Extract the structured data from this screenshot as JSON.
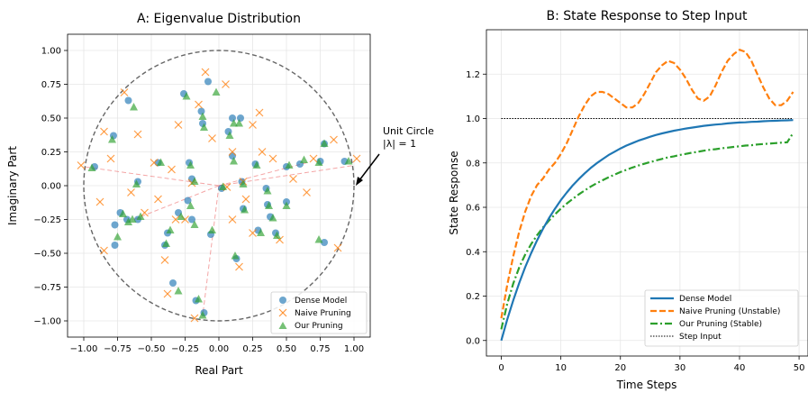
{
  "chart_data": [
    {
      "type": "scatter",
      "title": "A: Eigenvalue Distribution",
      "xlabel": "Real Part",
      "ylabel": "Imaginary Part",
      "xlim": [
        -1.12,
        1.12
      ],
      "ylim": [
        -1.12,
        1.12
      ],
      "xticks": [
        "−1.00",
        "−0.75",
        "−0.50",
        "−0.25",
        "0.00",
        "0.25",
        "0.50",
        "0.75",
        "1.00"
      ],
      "yticks": [
        "−1.00",
        "−0.75",
        "−0.50",
        "−0.25",
        "0.00",
        "0.25",
        "0.50",
        "0.75",
        "1.00"
      ],
      "grid": true,
      "legend_position": "lower-right",
      "annotation": {
        "line1": "Unit Circle",
        "line2": "|λ| = 1",
        "points_to": [
          1.0,
          0.0
        ]
      },
      "series": [
        {
          "name": "Dense Model",
          "marker": "circle",
          "color": "#1f77b4",
          "points": [
            [
              -0.92,
              0.14
            ],
            [
              -0.67,
              0.63
            ],
            [
              -0.78,
              0.37
            ],
            [
              -0.45,
              0.17
            ],
            [
              -0.6,
              0.03
            ],
            [
              -0.38,
              -0.35
            ],
            [
              -0.4,
              -0.44
            ],
            [
              -0.73,
              -0.2
            ],
            [
              -0.77,
              -0.29
            ],
            [
              -0.68,
              -0.25
            ],
            [
              -0.6,
              -0.25
            ],
            [
              -0.77,
              -0.44
            ],
            [
              -0.26,
              0.68
            ],
            [
              -0.08,
              0.77
            ],
            [
              -0.13,
              0.55
            ],
            [
              -0.12,
              0.46
            ],
            [
              -0.22,
              0.17
            ],
            [
              -0.2,
              0.05
            ],
            [
              -0.23,
              -0.11
            ],
            [
              -0.3,
              -0.2
            ],
            [
              -0.2,
              -0.25
            ],
            [
              -0.06,
              -0.36
            ],
            [
              0.07,
              0.4
            ],
            [
              0.1,
              0.5
            ],
            [
              0.16,
              0.5
            ],
            [
              0.1,
              0.22
            ],
            [
              0.27,
              0.16
            ],
            [
              0.17,
              0.03
            ],
            [
              0.35,
              -0.02
            ],
            [
              0.36,
              -0.14
            ],
            [
              0.5,
              -0.12
            ],
            [
              0.5,
              0.14
            ],
            [
              0.6,
              0.16
            ],
            [
              0.75,
              0.18
            ],
            [
              0.78,
              0.31
            ],
            [
              0.93,
              0.18
            ],
            [
              0.18,
              -0.17
            ],
            [
              0.38,
              -0.23
            ],
            [
              0.29,
              -0.33
            ],
            [
              0.42,
              -0.35
            ],
            [
              0.13,
              -0.54
            ],
            [
              0.78,
              -0.42
            ],
            [
              0.02,
              -0.02
            ],
            [
              -0.17,
              -0.85
            ],
            [
              -0.34,
              -0.72
            ],
            [
              -0.11,
              -0.94
            ]
          ]
        },
        {
          "name": "Naive Pruning",
          "marker": "x",
          "color": "#ff7f0e",
          "points": [
            [
              -1.02,
              0.15
            ],
            [
              -0.85,
              0.4
            ],
            [
              -0.88,
              -0.12
            ],
            [
              -0.7,
              0.69
            ],
            [
              -0.6,
              0.38
            ],
            [
              -0.65,
              -0.05
            ],
            [
              -0.45,
              -0.1
            ],
            [
              -0.35,
              0.12
            ],
            [
              -0.32,
              -0.25
            ],
            [
              -0.4,
              -0.55
            ],
            [
              -0.38,
              -0.8
            ],
            [
              -0.3,
              0.45
            ],
            [
              -0.15,
              0.6
            ],
            [
              -0.1,
              0.84
            ],
            [
              0.05,
              0.75
            ],
            [
              -0.05,
              0.35
            ],
            [
              -0.2,
              0.02
            ],
            [
              -0.25,
              -0.25
            ],
            [
              0.06,
              -0.01
            ],
            [
              0.1,
              -0.25
            ],
            [
              0.25,
              0.45
            ],
            [
              0.3,
              0.54
            ],
            [
              0.2,
              -0.1
            ],
            [
              0.4,
              0.2
            ],
            [
              0.45,
              -0.4
            ],
            [
              0.15,
              -0.6
            ],
            [
              0.1,
              0.25
            ],
            [
              0.55,
              0.05
            ],
            [
              0.65,
              -0.05
            ],
            [
              0.7,
              0.2
            ],
            [
              0.85,
              0.34
            ],
            [
              1.02,
              0.2
            ],
            [
              0.88,
              -0.46
            ],
            [
              -0.85,
              -0.48
            ],
            [
              0.25,
              -0.35
            ],
            [
              0.32,
              0.25
            ],
            [
              -0.8,
              0.2
            ],
            [
              -0.18,
              -0.98
            ],
            [
              0.18,
              0.03
            ],
            [
              -0.55,
              -0.2
            ],
            [
              -0.48,
              0.17
            ]
          ]
        },
        {
          "name": "Our Pruning",
          "marker": "triangle",
          "color": "#2ca02c",
          "points": [
            [
              -0.94,
              0.13
            ],
            [
              -0.63,
              0.58
            ],
            [
              -0.79,
              0.34
            ],
            [
              -0.43,
              0.17
            ],
            [
              -0.61,
              0.01
            ],
            [
              -0.36,
              -0.33
            ],
            [
              -0.39,
              -0.43
            ],
            [
              -0.71,
              -0.21
            ],
            [
              -0.67,
              -0.27
            ],
            [
              -0.64,
              -0.25
            ],
            [
              -0.58,
              -0.23
            ],
            [
              -0.75,
              -0.38
            ],
            [
              -0.24,
              0.66
            ],
            [
              -0.02,
              0.69
            ],
            [
              -0.12,
              0.51
            ],
            [
              -0.11,
              0.43
            ],
            [
              -0.21,
              0.15
            ],
            [
              -0.18,
              0.03
            ],
            [
              -0.21,
              -0.15
            ],
            [
              -0.28,
              -0.23
            ],
            [
              -0.18,
              -0.29
            ],
            [
              -0.05,
              -0.33
            ],
            [
              0.08,
              0.37
            ],
            [
              0.11,
              0.46
            ],
            [
              0.15,
              0.46
            ],
            [
              0.11,
              0.18
            ],
            [
              0.28,
              0.15
            ],
            [
              0.18,
              0.01
            ],
            [
              0.36,
              -0.04
            ],
            [
              0.37,
              -0.15
            ],
            [
              0.5,
              -0.15
            ],
            [
              0.52,
              0.15
            ],
            [
              0.63,
              0.19
            ],
            [
              0.78,
              0.31
            ],
            [
              0.74,
              0.17
            ],
            [
              0.96,
              0.18
            ],
            [
              0.19,
              -0.18
            ],
            [
              0.4,
              -0.24
            ],
            [
              0.31,
              -0.35
            ],
            [
              0.43,
              -0.37
            ],
            [
              0.12,
              -0.52
            ],
            [
              0.74,
              -0.4
            ],
            [
              0.03,
              -0.01
            ],
            [
              -0.15,
              -0.84
            ],
            [
              -0.3,
              -0.78
            ],
            [
              -0.12,
              -0.96
            ]
          ]
        }
      ]
    },
    {
      "type": "line",
      "title": "B: State Response to Step Input",
      "xlabel": "Time Steps",
      "ylabel": "State Response",
      "xlim": [
        -2.5,
        51.5
      ],
      "ylim": [
        -0.07,
        1.4
      ],
      "xticks": [
        "0",
        "10",
        "20",
        "30",
        "40",
        "50"
      ],
      "yticks": [
        "0.0",
        "0.2",
        "0.4",
        "0.6",
        "0.8",
        "1.0",
        "1.2"
      ],
      "grid": true,
      "legend_position": "lower-right",
      "series": [
        {
          "name": "Dense Model",
          "style": "solid",
          "color": "#1f77b4",
          "x": [
            0,
            1,
            2,
            3,
            4,
            5,
            6,
            7,
            8,
            9,
            10,
            11,
            12,
            13,
            14,
            15,
            16,
            17,
            18,
            19,
            20,
            21,
            22,
            23,
            24,
            25,
            26,
            27,
            28,
            29,
            30,
            31,
            32,
            33,
            34,
            35,
            36,
            37,
            38,
            39,
            40,
            41,
            42,
            43,
            44,
            45,
            46,
            47,
            48,
            49
          ],
          "y": [
            0.0,
            0.095,
            0.181,
            0.259,
            0.33,
            0.393,
            0.451,
            0.503,
            0.551,
            0.593,
            0.632,
            0.667,
            0.699,
            0.727,
            0.753,
            0.777,
            0.798,
            0.817,
            0.835,
            0.85,
            0.865,
            0.878,
            0.889,
            0.9,
            0.909,
            0.918,
            0.926,
            0.933,
            0.939,
            0.945,
            0.95,
            0.955,
            0.959,
            0.963,
            0.967,
            0.97,
            0.973,
            0.975,
            0.978,
            0.98,
            0.982,
            0.983,
            0.985,
            0.986,
            0.988,
            0.989,
            0.99,
            0.991,
            0.992,
            0.993
          ]
        },
        {
          "name": "Naive Pruning (Unstable)",
          "style": "dashed",
          "color": "#ff7f0e",
          "x": [
            0,
            1,
            2,
            3,
            4,
            5,
            6,
            7,
            8,
            9,
            10,
            11,
            12,
            13,
            14,
            15,
            16,
            17,
            18,
            19,
            20,
            21,
            22,
            23,
            24,
            25,
            26,
            27,
            28,
            29,
            30,
            31,
            32,
            33,
            34,
            35,
            36,
            37,
            38,
            39,
            40,
            41,
            42,
            43,
            44,
            45,
            46,
            47,
            48,
            49
          ],
          "y": [
            0.1,
            0.25,
            0.38,
            0.49,
            0.58,
            0.65,
            0.7,
            0.73,
            0.77,
            0.8,
            0.84,
            0.89,
            0.95,
            1.01,
            1.06,
            1.1,
            1.12,
            1.12,
            1.11,
            1.09,
            1.07,
            1.05,
            1.05,
            1.07,
            1.11,
            1.16,
            1.21,
            1.24,
            1.26,
            1.25,
            1.22,
            1.18,
            1.13,
            1.09,
            1.08,
            1.1,
            1.15,
            1.21,
            1.26,
            1.29,
            1.31,
            1.3,
            1.26,
            1.2,
            1.14,
            1.09,
            1.06,
            1.06,
            1.08,
            1.12
          ]
        },
        {
          "name": "Our Pruning (Stable)",
          "style": "dashdot",
          "color": "#2ca02c",
          "x": [
            0,
            1,
            2,
            3,
            4,
            5,
            6,
            7,
            8,
            9,
            10,
            11,
            12,
            13,
            14,
            15,
            16,
            17,
            18,
            19,
            20,
            21,
            22,
            23,
            24,
            25,
            26,
            27,
            28,
            29,
            30,
            31,
            32,
            33,
            34,
            35,
            36,
            37,
            38,
            39,
            40,
            41,
            42,
            43,
            44,
            45,
            46,
            47,
            48,
            49
          ],
          "y": [
            0.05,
            0.165,
            0.257,
            0.329,
            0.387,
            0.434,
            0.474,
            0.509,
            0.54,
            0.568,
            0.594,
            0.617,
            0.638,
            0.658,
            0.676,
            0.693,
            0.708,
            0.722,
            0.735,
            0.747,
            0.759,
            0.769,
            0.779,
            0.788,
            0.796,
            0.804,
            0.811,
            0.818,
            0.825,
            0.83,
            0.836,
            0.841,
            0.846,
            0.85,
            0.855,
            0.859,
            0.862,
            0.866,
            0.869,
            0.872,
            0.875,
            0.878,
            0.88,
            0.883,
            0.885,
            0.887,
            0.889,
            0.891,
            0.893,
            0.935
          ]
        },
        {
          "name": "Step Input",
          "style": "dotted",
          "color": "#000000",
          "x": [
            0,
            49
          ],
          "y": [
            1.0,
            1.0
          ]
        }
      ]
    }
  ]
}
